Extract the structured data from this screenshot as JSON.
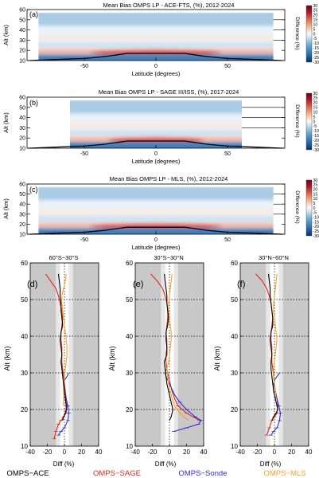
{
  "colors": {
    "ace": "#000000",
    "sage": "#e0281e",
    "sonde": "#2d2dd2",
    "mls": "#f5a623",
    "neg": "#2166ac",
    "pos": "#b2182b"
  },
  "colorbar": {
    "label": "Difference (%)",
    "ticks": [
      "30",
      "25",
      "20",
      "15",
      "10",
      "5",
      "0",
      "-5",
      "-10",
      "-15",
      "-20",
      "-25",
      "-30"
    ]
  },
  "top_panels": [
    {
      "letter": "(a)",
      "title": "Mean Bias OMPS LP - ACE-FTS, (%), 2012-2024"
    },
    {
      "letter": "(b)",
      "title": "Mean Bias OMPS LP - SAGE III/ISS, (%), 2017-2024"
    },
    {
      "letter": "(c)",
      "title": "Mean Bias OMPS LP - MLS, (%), 2012-2024"
    }
  ],
  "top_axes": {
    "ylabel": "Alt (km)",
    "xlabel": "Latitude (degrees)",
    "yticks": [
      "10",
      "20",
      "30",
      "40",
      "50",
      "60"
    ],
    "xticks": [
      "-50",
      "0",
      "50"
    ]
  },
  "profile_axes": {
    "ylabel": "Alt  (km)",
    "xlabel": "Diff  (%)",
    "yticks": [
      "10",
      "20",
      "30",
      "40",
      "50",
      "60"
    ],
    "xticks": [
      "-40",
      "-20",
      "0",
      "20",
      "40"
    ]
  },
  "profile_panels": [
    {
      "letter": "(d)",
      "title": "60°S−30°S"
    },
    {
      "letter": "(e)",
      "title": "30°S−30°N"
    },
    {
      "letter": "(f)",
      "title": "30°N−60°N"
    }
  ],
  "legend": [
    "OMPS−ACE",
    "OMPS−SAGE",
    "OMPS−Sonde",
    "OMPS−MLS"
  ],
  "chart_data": [
    {
      "type": "heatmap",
      "title": "Mean Bias OMPS LP - ACE-FTS, (%), 2012-2024",
      "xlabel": "Latitude (degrees)",
      "ylabel": "Alt (km)",
      "xlim": [
        -90,
        90
      ],
      "ylim": [
        10,
        60
      ],
      "zlim": [
        -30,
        30
      ],
      "lat_range": [
        -82,
        82
      ],
      "alt_range": [
        10,
        57
      ],
      "tropopause": {
        "lat": [
          -88,
          -70,
          -50,
          -35,
          -25,
          -20,
          0,
          20,
          25,
          35,
          50,
          70,
          88
        ],
        "alt": [
          10,
          11,
          12,
          14,
          16,
          17,
          17,
          17,
          16,
          14,
          12,
          11,
          10
        ]
      }
    },
    {
      "type": "heatmap",
      "title": "Mean Bias OMPS LP - SAGE III/ISS, (%), 2017-2024",
      "xlabel": "Latitude (degrees)",
      "ylabel": "Alt (km)",
      "xlim": [
        -90,
        90
      ],
      "ylim": [
        10,
        60
      ],
      "zlim": [
        -30,
        30
      ],
      "lat_range": [
        -60,
        60
      ],
      "alt_range": [
        10,
        57
      ],
      "tropopause": {
        "lat": [
          -88,
          -70,
          -50,
          -35,
          -25,
          -20,
          0,
          20,
          25,
          35,
          50,
          70,
          88
        ],
        "alt": [
          10,
          11,
          12,
          14,
          16,
          17,
          17,
          17,
          16,
          14,
          12,
          11,
          10
        ]
      }
    },
    {
      "type": "heatmap",
      "title": "Mean Bias OMPS LP - MLS, (%), 2012-2024",
      "xlabel": "Latitude (degrees)",
      "ylabel": "Alt (km)",
      "xlim": [
        -90,
        90
      ],
      "ylim": [
        10,
        60
      ],
      "zlim": [
        -30,
        30
      ],
      "lat_range": [
        -82,
        82
      ],
      "alt_range": [
        10,
        57
      ],
      "tropopause": {
        "lat": [
          -88,
          -70,
          -50,
          -35,
          -25,
          -20,
          0,
          20,
          25,
          35,
          50,
          70,
          88
        ],
        "alt": [
          10,
          11,
          12,
          14,
          16,
          17,
          17,
          17,
          16,
          14,
          12,
          11,
          10
        ]
      }
    },
    {
      "type": "line",
      "title": "60°S−30°S",
      "xlabel": "Diff  (%)",
      "ylabel": "Alt  (km)",
      "xlim": [
        -40,
        40
      ],
      "ylim": [
        10,
        60
      ],
      "series": [
        {
          "name": "OMPS−ACE",
          "x": [
            -7,
            -6,
            -5,
            -5,
            -4,
            -4,
            -3,
            -2,
            -4,
            -5,
            -4,
            -3,
            -4,
            -3,
            -2,
            -1,
            0,
            1,
            2,
            2,
            1,
            -1,
            -2
          ],
          "y": [
            57,
            55,
            53,
            51,
            49,
            47,
            45,
            43,
            41,
            39,
            37,
            35,
            33,
            31,
            29,
            27,
            25,
            23,
            21,
            20,
            19,
            18,
            17
          ]
        },
        {
          "name": "OMPS−SAGE",
          "x": [
            -22,
            -16,
            -10,
            -7,
            -5,
            -3,
            -2,
            -3,
            -4,
            -4,
            -3,
            -3,
            -3,
            -2,
            -1,
            0,
            1,
            2,
            3,
            2,
            -1,
            -4,
            -7,
            -10,
            -12
          ],
          "y": [
            57,
            55,
            53,
            51,
            49,
            47,
            45,
            43,
            41,
            39,
            37,
            35,
            33,
            31,
            29,
            27,
            25,
            23,
            21,
            19,
            18,
            17,
            16,
            14,
            12
          ]
        },
        {
          "name": "OMPS−Sonde",
          "x": [
            5,
            3,
            0,
            -1,
            0,
            2,
            4,
            5,
            4,
            0,
            -4,
            -7
          ],
          "y": [
            30,
            29,
            28,
            27,
            25,
            23,
            21,
            19,
            17,
            15,
            14,
            13
          ]
        },
        {
          "name": "OMPS−MLS",
          "x": [
            2,
            1,
            -1,
            -3,
            -3,
            -2,
            -1,
            0,
            1,
            2,
            3,
            3,
            2,
            1,
            0,
            -1,
            -1,
            -1,
            -1
          ],
          "y": [
            57,
            55,
            53,
            51,
            49,
            47,
            45,
            43,
            41,
            39,
            37,
            35,
            33,
            31,
            29,
            27,
            25,
            23,
            21
          ]
        }
      ]
    },
    {
      "type": "line",
      "title": "30°S−30°N",
      "xlabel": "Diff  (%)",
      "ylabel": "Alt  (km)",
      "xlim": [
        -40,
        40
      ],
      "ylim": [
        10,
        60
      ],
      "series": [
        {
          "name": "OMPS−ACE",
          "x": [
            -6,
            -5,
            -4,
            -3,
            -3,
            -2,
            -1,
            -2,
            -4,
            -4,
            -3,
            -3,
            -6,
            -5,
            -4,
            -3,
            -1,
            1,
            3,
            4,
            2,
            0
          ],
          "y": [
            57,
            55,
            53,
            51,
            49,
            47,
            45,
            43,
            41,
            39,
            37,
            35,
            33,
            31,
            29,
            27,
            25,
            23,
            21,
            20,
            18,
            17
          ]
        },
        {
          "name": "OMPS−SAGE",
          "x": [
            -22,
            -14,
            -8,
            -5,
            -3,
            -2,
            -2,
            -3,
            -4,
            -3,
            -3,
            -4,
            -4,
            -3,
            -1,
            1,
            3,
            6,
            10,
            20,
            35
          ],
          "y": [
            57,
            55,
            53,
            51,
            49,
            47,
            45,
            43,
            41,
            39,
            37,
            35,
            33,
            31,
            29,
            27,
            25,
            23,
            21,
            19,
            17
          ]
        },
        {
          "name": "OMPS−Sonde",
          "x": [
            -4,
            -5,
            -4,
            -2,
            2,
            6,
            12,
            20,
            30,
            37,
            34,
            20,
            5
          ],
          "y": [
            31,
            30,
            29,
            28,
            26,
            24,
            22,
            20,
            18,
            17,
            16,
            15,
            14
          ]
        },
        {
          "name": "OMPS−MLS",
          "x": [
            3,
            2,
            1,
            0,
            -1,
            -1,
            0,
            1,
            2,
            2,
            1,
            0,
            -1,
            -3,
            -2,
            -1,
            1,
            3,
            6,
            12,
            22
          ],
          "y": [
            57,
            55,
            53,
            51,
            49,
            47,
            45,
            43,
            41,
            39,
            37,
            35,
            33,
            31,
            29,
            27,
            25,
            23,
            21,
            19,
            17
          ]
        }
      ]
    },
    {
      "type": "line",
      "title": "30°N−60°N",
      "xlabel": "Diff  (%)",
      "ylabel": "Alt  (km)",
      "xlim": [
        -40,
        40
      ],
      "ylim": [
        10,
        60
      ],
      "series": [
        {
          "name": "OMPS−ACE",
          "x": [
            -7,
            -6,
            -5,
            -5,
            -4,
            -3,
            -2,
            -2,
            -4,
            -5,
            -4,
            -3,
            -4,
            -4,
            -3,
            -2,
            -1,
            1,
            3,
            4,
            2,
            -1,
            -3
          ],
          "y": [
            57,
            55,
            53,
            51,
            49,
            47,
            45,
            43,
            41,
            39,
            37,
            35,
            33,
            31,
            29,
            27,
            25,
            23,
            21,
            20,
            19,
            18,
            17
          ]
        },
        {
          "name": "OMPS−SAGE",
          "x": [
            -22,
            -14,
            -9,
            -6,
            -4,
            -3,
            -2,
            -3,
            -4,
            -4,
            -3,
            -3,
            -3,
            -2,
            -1,
            0,
            1,
            3,
            4,
            3,
            0,
            -3,
            -6,
            -9
          ],
          "y": [
            57,
            55,
            53,
            51,
            49,
            47,
            45,
            43,
            41,
            39,
            37,
            35,
            33,
            31,
            29,
            27,
            25,
            23,
            21,
            19,
            18,
            17,
            15,
            13
          ]
        },
        {
          "name": "OMPS−Sonde",
          "x": [
            6,
            3,
            0,
            -1,
            1,
            3,
            5,
            7,
            6,
            3,
            -1,
            -4
          ],
          "y": [
            30,
            29,
            28,
            27,
            25,
            23,
            21,
            19,
            17,
            15,
            14,
            13
          ]
        },
        {
          "name": "OMPS−MLS",
          "x": [
            3,
            2,
            1,
            0,
            -1,
            -1,
            0,
            1,
            2,
            3,
            2,
            1,
            0,
            -1,
            -1,
            0,
            1,
            2
          ],
          "y": [
            57,
            55,
            53,
            51,
            49,
            47,
            45,
            43,
            41,
            39,
            37,
            35,
            33,
            31,
            29,
            27,
            25,
            23
          ]
        }
      ]
    }
  ]
}
